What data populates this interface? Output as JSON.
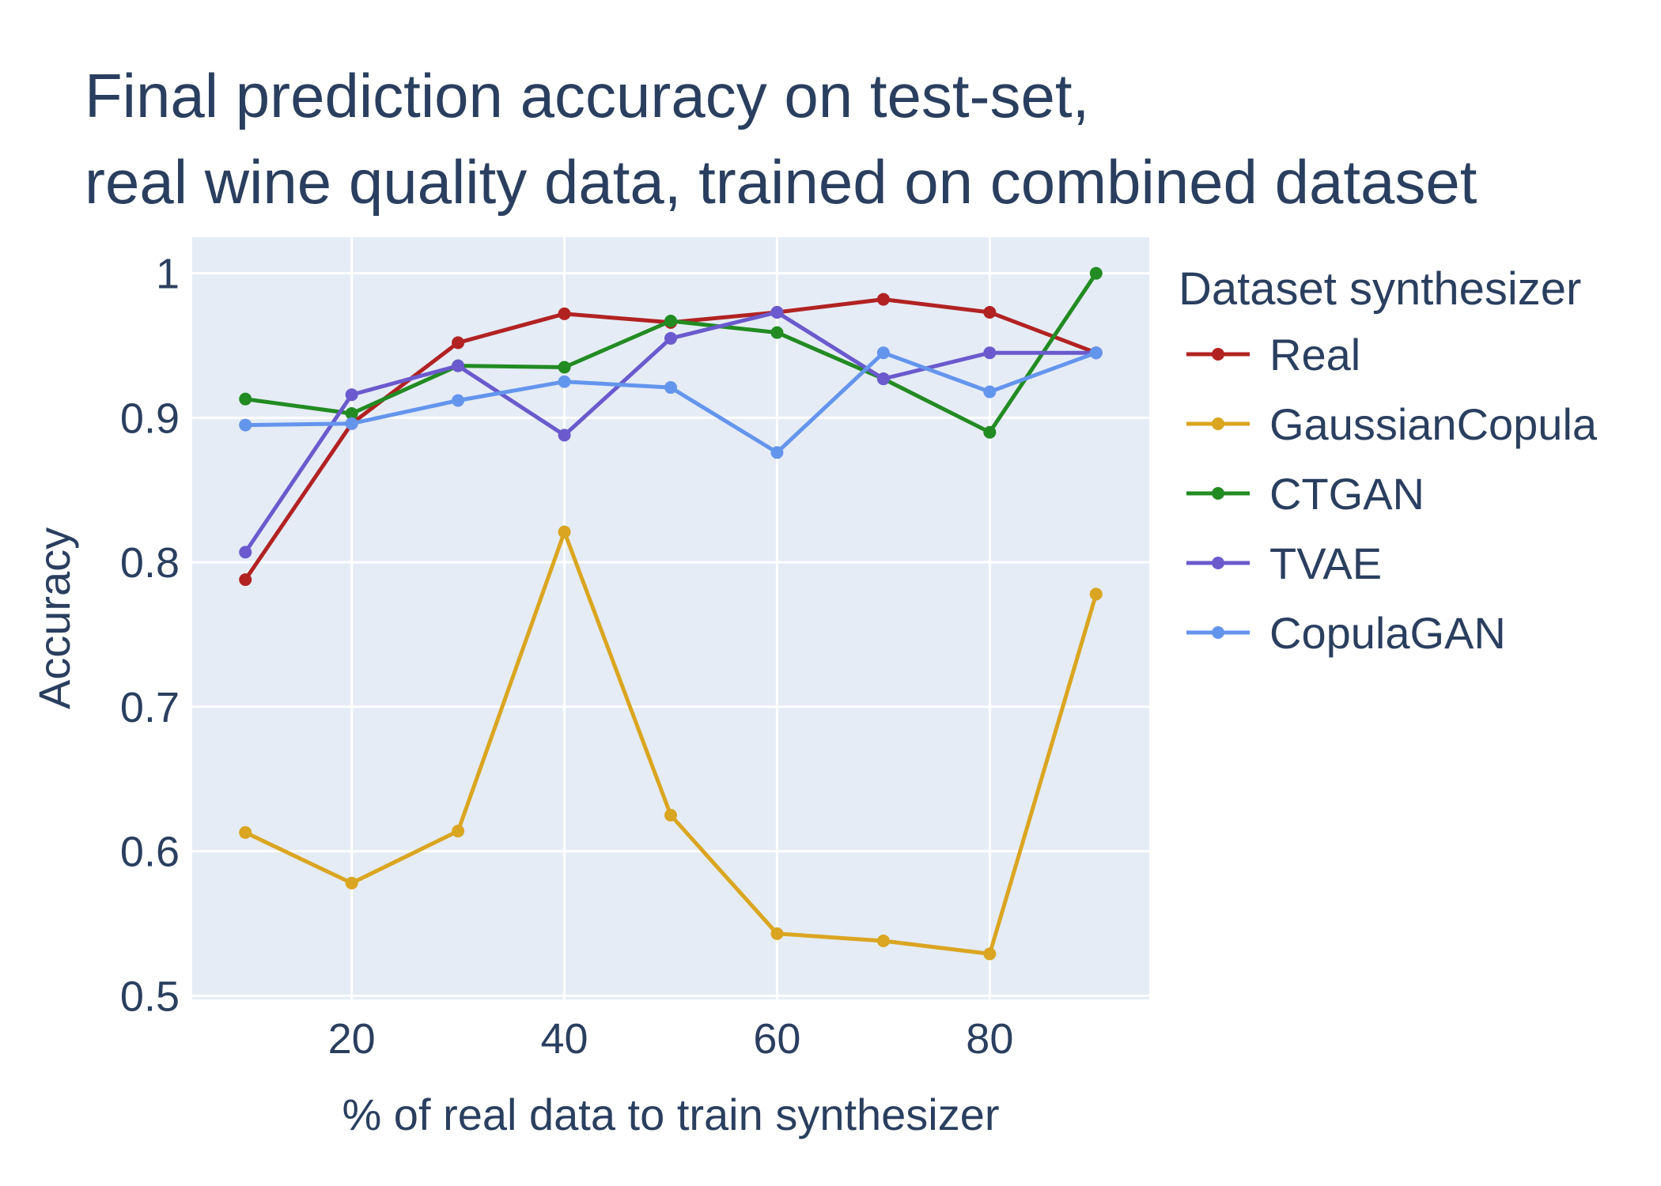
{
  "chart_data": {
    "type": "line",
    "title": [
      "Final prediction accuracy on test-set,",
      "real wine quality data, trained on combined dataset"
    ],
    "xlabel": "% of real data to train synthesizer",
    "ylabel": "Accuracy",
    "x": [
      10,
      20,
      30,
      40,
      50,
      60,
      70,
      80,
      90
    ],
    "xlim": [
      5,
      95
    ],
    "ylim": [
      0.4975,
      1.025
    ],
    "xticks": [
      20,
      40,
      60,
      80
    ],
    "yticks": [
      0.5,
      0.6,
      0.7,
      0.8,
      0.9,
      1
    ],
    "ytick_labels": [
      "0.5",
      "0.6",
      "0.7",
      "0.8",
      "0.9",
      "1"
    ],
    "grid": true,
    "plot_background": "#e5ecf6",
    "grid_color": "#ffffff",
    "text_color": "#2a3f5f",
    "legend": {
      "title": "Dataset synthesizer",
      "placement": "right"
    },
    "series": [
      {
        "name": "Real",
        "color": "#b22222",
        "values": [
          0.788,
          0.896,
          0.952,
          0.972,
          0.966,
          0.973,
          0.982,
          0.973,
          0.945
        ]
      },
      {
        "name": "GaussianCopula",
        "color": "#daa520",
        "values": [
          0.613,
          0.578,
          0.614,
          0.821,
          0.625,
          0.543,
          0.538,
          0.529,
          0.778
        ]
      },
      {
        "name": "CTGAN",
        "color": "#228b22",
        "values": [
          0.913,
          0.903,
          0.936,
          0.935,
          0.967,
          0.959,
          0.927,
          0.89,
          1.0
        ]
      },
      {
        "name": "TVAE",
        "color": "#6a5acd",
        "values": [
          0.807,
          0.916,
          0.936,
          0.888,
          0.955,
          0.973,
          0.927,
          0.945,
          0.945
        ]
      },
      {
        "name": "CopulaGAN",
        "color": "#6495ed",
        "values": [
          0.895,
          0.896,
          0.912,
          0.925,
          0.921,
          0.876,
          0.945,
          0.918,
          0.945
        ]
      }
    ]
  }
}
